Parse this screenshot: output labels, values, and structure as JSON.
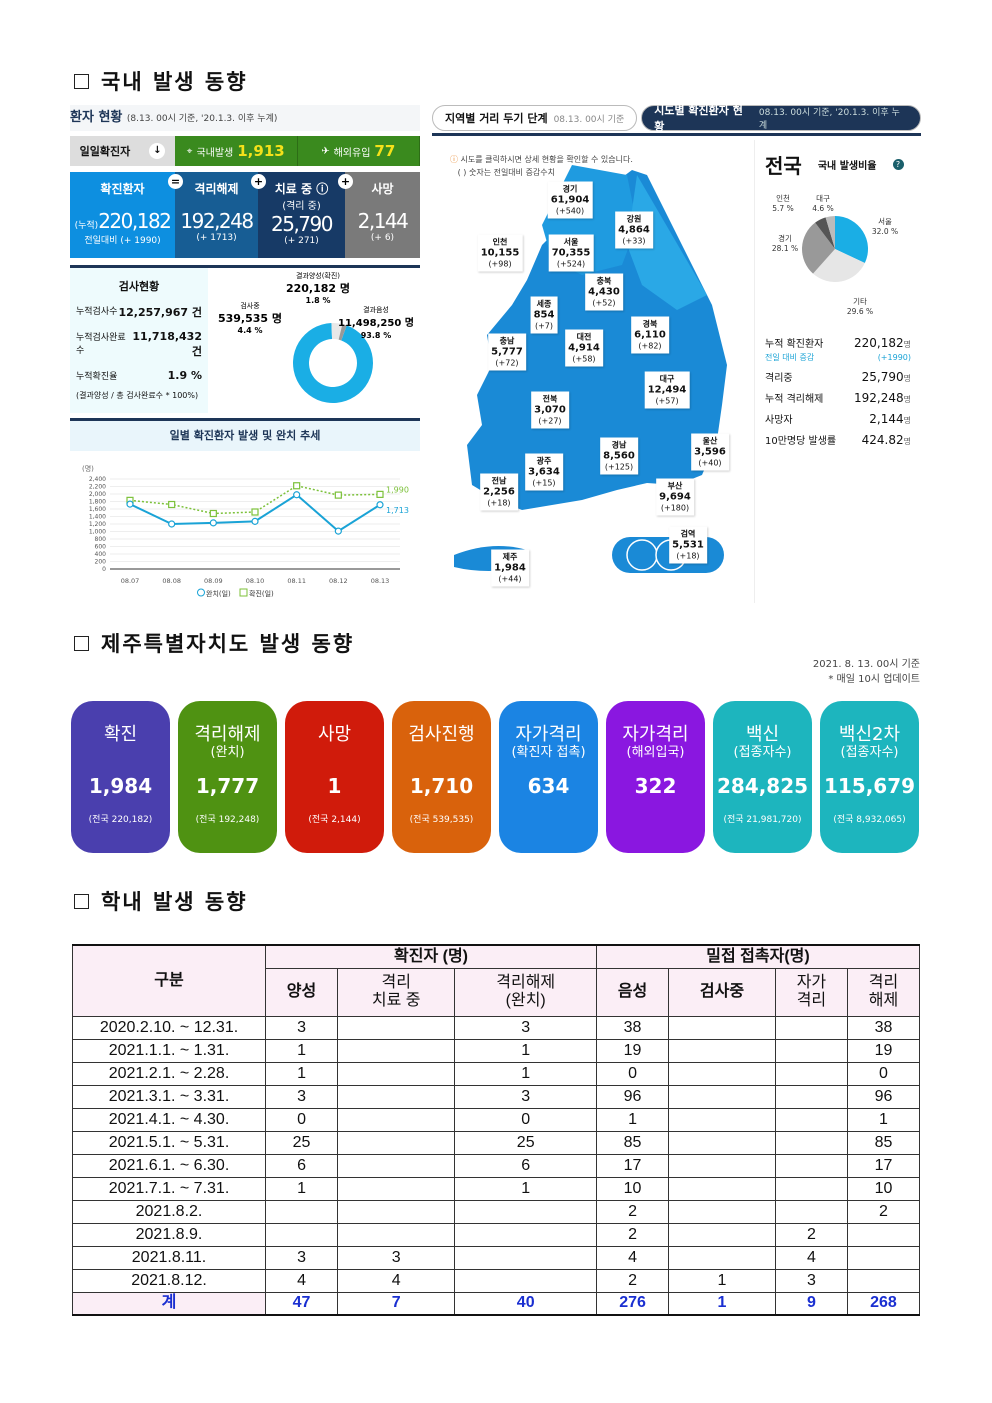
{
  "sections": [
    "국내 발생 동향",
    "제주특별자치도 발생 동향",
    "학내 발생 동향"
  ],
  "domestic": {
    "title": "환자 현황",
    "title_note": "(8.13. 00시 기준, '20.1.3. 이후 누계)",
    "daily_label": "일일확진자",
    "local_label": "국내발생",
    "local_value": "1,913",
    "overseas_label": "해외유입",
    "overseas_value": "77",
    "stats": [
      {
        "label": "확진환자",
        "sub": "",
        "prefix": "(누적)",
        "value": "220,182",
        "delta": "전일대비 (+ 1990)",
        "color": "#0d8fe0"
      },
      {
        "label": "격리해제",
        "sub": "",
        "prefix": "",
        "value": "192,248",
        "delta": "(+ 1713)",
        "color": "#175d94"
      },
      {
        "label": "치료 중 ⓘ",
        "sub": "(격리 중)",
        "prefix": "",
        "value": "25,790",
        "delta": "(+ 271)",
        "color": "#173a66"
      },
      {
        "label": "사망",
        "sub": "",
        "prefix": "",
        "value": "2,144",
        "delta": "(+ 6)",
        "color": "#7a7a7a"
      }
    ],
    "ops": [
      "=",
      "+",
      "+"
    ],
    "tests": {
      "title": "검사현황",
      "rows": [
        [
          "누적검사수",
          "12,257,967 건"
        ],
        [
          "누적검사완료수",
          "11,718,432 건"
        ],
        [
          "누적확진율",
          "1.9 %"
        ]
      ],
      "note": "(결과양성 / 총 검사완료수 * 100%)",
      "donut": {
        "testing_label": "검사중",
        "testing_value": "539,535 명",
        "testing_pct": "4.4 %",
        "positive_label": "결과양성(확진)",
        "positive_value": "220,182 명",
        "positive_pct": "1.8 %",
        "negative_label": "결과음성",
        "negative_value": "11,498,250 명",
        "negative_pct": "93.8 %",
        "fractions": [
          93.8,
          4.4,
          1.8
        ],
        "colors": [
          "#1aaee5",
          "#e8e8e8",
          "#999"
        ]
      }
    },
    "chart_data": {
      "type": "line",
      "title": "일별 확진환자 발생 및 완치 추세",
      "ylabel": "(명)",
      "ylim": [
        0,
        2400
      ],
      "yticks": [
        "0",
        "200",
        "400",
        "600",
        "800",
        "1,000",
        "1,200",
        "1,400",
        "1,600",
        "1,800",
        "2,000",
        "2,200",
        "2,400"
      ],
      "categories": [
        "08.07",
        "08.08",
        "08.09",
        "08.10",
        "08.11",
        "08.12",
        "08.13"
      ],
      "series": [
        {
          "name": "완치(일)",
          "values": [
            1730,
            1200,
            1230,
            1270,
            1980,
            1010,
            1713
          ],
          "color": "#1aa3d6",
          "end_label": "1,713"
        },
        {
          "name": "확진(일)",
          "values": [
            1830,
            1720,
            1480,
            1520,
            2220,
            1970,
            1990
          ],
          "color": "#7cc13a",
          "end_label": "1,990"
        }
      ]
    },
    "tabs": [
      {
        "label": "지역별 거리 두기 단계",
        "note": "08.13. 00시 기준"
      },
      {
        "label": "시도별 확진환자 현황",
        "note": "08.13. 00시 기준, '20.1.3. 이후 누계"
      }
    ],
    "map_note1": "시도를 클릭하시면 상세 현황을 확인할 수 있습니다.",
    "map_note2": "( ) 숫자는 전일대비 증감수치",
    "regions": [
      {
        "name": "경기",
        "value": "61,904",
        "delta": "(+540)"
      },
      {
        "name": "강원",
        "value": "4,864",
        "delta": "(+33)"
      },
      {
        "name": "인천",
        "value": "10,155",
        "delta": "(+98)"
      },
      {
        "name": "서울",
        "value": "70,355",
        "delta": "(+524)"
      },
      {
        "name": "충북",
        "value": "4,430",
        "delta": "(+52)"
      },
      {
        "name": "세종",
        "value": "854",
        "delta": "(+7)"
      },
      {
        "name": "충남",
        "value": "5,777",
        "delta": "(+72)"
      },
      {
        "name": "대전",
        "value": "4,914",
        "delta": "(+58)"
      },
      {
        "name": "경북",
        "value": "6,110",
        "delta": "(+82)"
      },
      {
        "name": "대구",
        "value": "12,494",
        "delta": "(+57)"
      },
      {
        "name": "전북",
        "value": "3,070",
        "delta": "(+27)"
      },
      {
        "name": "경남",
        "value": "8,560",
        "delta": "(+125)"
      },
      {
        "name": "울산",
        "value": "3,596",
        "delta": "(+40)"
      },
      {
        "name": "광주",
        "value": "3,634",
        "delta": "(+15)"
      },
      {
        "name": "전남",
        "value": "2,256",
        "delta": "(+18)"
      },
      {
        "name": "부산",
        "value": "9,694",
        "delta": "(+180)"
      },
      {
        "name": "검역",
        "value": "5,531",
        "delta": "(+18)"
      },
      {
        "name": "제주",
        "value": "1,984",
        "delta": "(+44)"
      }
    ],
    "national": {
      "title": "전국",
      "ratio_label": "국내 발생비율",
      "pie": [
        {
          "label": "서울",
          "pct": "32.0 %",
          "value": 32.0,
          "color": "#1aaee5"
        },
        {
          "label": "기타",
          "pct": "29.6 %",
          "value": 29.6,
          "color": "#e6e6e6"
        },
        {
          "label": "경기",
          "pct": "28.1 %",
          "value": 28.1,
          "color": "#999"
        },
        {
          "label": "인천",
          "pct": "5.7 %",
          "value": 5.7,
          "color": "#555"
        },
        {
          "label": "대구",
          "pct": "4.6 %",
          "value": 4.6,
          "color": "#bbb"
        }
      ],
      "rows": [
        [
          "누적 확진환자",
          "220,182",
          "명"
        ],
        [
          "전일 대비 증감",
          "(+1990)",
          ""
        ],
        [
          "격리중",
          "25,790",
          "명"
        ],
        [
          "누적 격리해제",
          "192,248",
          "명"
        ],
        [
          "사망자",
          "2,144",
          "명"
        ],
        [
          "10만명당 발생률",
          "424.82",
          "명"
        ]
      ]
    }
  },
  "jeju": {
    "date": "2021. 8. 13. 00시 기준",
    "update": "* 매일 10시 업데이트",
    "cards": [
      {
        "title": "확진",
        "sub": "",
        "value": "1,984",
        "national": "(전국 220,182)",
        "color": "#4a3fae"
      },
      {
        "title": "격리해제",
        "sub": "(완치)",
        "value": "1,777",
        "national": "(전국 192,248)",
        "color": "#4f9212"
      },
      {
        "title": "사망",
        "sub": "",
        "value": "1",
        "national": "(전국 2,144)",
        "color": "#d01b0b"
      },
      {
        "title": "검사진행",
        "sub": "",
        "value": "1,710",
        "national": "(전국 539,535)",
        "color": "#d9620c"
      },
      {
        "title": "자가격리",
        "sub": "(확진자 접촉)",
        "value": "634",
        "national": "",
        "color": "#1b84e3"
      },
      {
        "title": "자가격리",
        "sub": "(해외입국)",
        "value": "322",
        "national": "",
        "color": "#8a17e0"
      },
      {
        "title": "백신",
        "sub": "(접종자수)",
        "value": "284,825",
        "national": "(전국 21,981,720)",
        "color": "#1db5be"
      },
      {
        "title": "백신2차",
        "sub": "(접종자수)",
        "value": "115,679",
        "national": "(전국 8,932,065)",
        "color": "#1db5be"
      }
    ]
  },
  "school": {
    "h_group": "구분",
    "h_confirmed": "확진자 (명)",
    "h_contact": "밀접 접촉자(명)",
    "cols": [
      "양성",
      "격리\n치료 중",
      "격리해제\n(완치)",
      "음성",
      "검사중",
      "자가\n격리",
      "격리\n해제"
    ],
    "rows": [
      [
        "2020.2.10.  ~ 12.31.",
        "3",
        "",
        "3",
        "38",
        "",
        "",
        "38"
      ],
      [
        "2021.1.1.  ~ 1.31.",
        "1",
        "",
        "1",
        "19",
        "",
        "",
        "19"
      ],
      [
        "2021.2.1.  ~ 2.28.",
        "1",
        "",
        "1",
        "0",
        "",
        "",
        "0"
      ],
      [
        "2021.3.1.  ~ 3.31.",
        "3",
        "",
        "3",
        "96",
        "",
        "",
        "96"
      ],
      [
        "2021.4.1.  ~ 4.30.",
        "0",
        "",
        "0",
        "1",
        "",
        "",
        "1"
      ],
      [
        "2021.5.1.  ~ 5.31.",
        "25",
        "",
        "25",
        "85",
        "",
        "",
        "85"
      ],
      [
        "2021.6.1.  ~ 6.30.",
        "6",
        "",
        "6",
        "17",
        "",
        "",
        "17"
      ],
      [
        "2021.7.1.  ~ 7.31.",
        "1",
        "",
        "1",
        "10",
        "",
        "",
        "10"
      ],
      [
        "2021.8.2.",
        "",
        "",
        "",
        "2",
        "",
        "",
        "2"
      ],
      [
        "2021.8.9.",
        "",
        "",
        "",
        "2",
        "",
        "2",
        ""
      ],
      [
        "2021.8.11.",
        "3",
        "3",
        "",
        "4",
        "",
        "4",
        ""
      ],
      [
        "2021.8.12.",
        "4",
        "4",
        "",
        "2",
        "1",
        "3",
        ""
      ]
    ],
    "total": [
      "계",
      "47",
      "7",
      "40",
      "276",
      "1",
      "9",
      "268"
    ]
  }
}
